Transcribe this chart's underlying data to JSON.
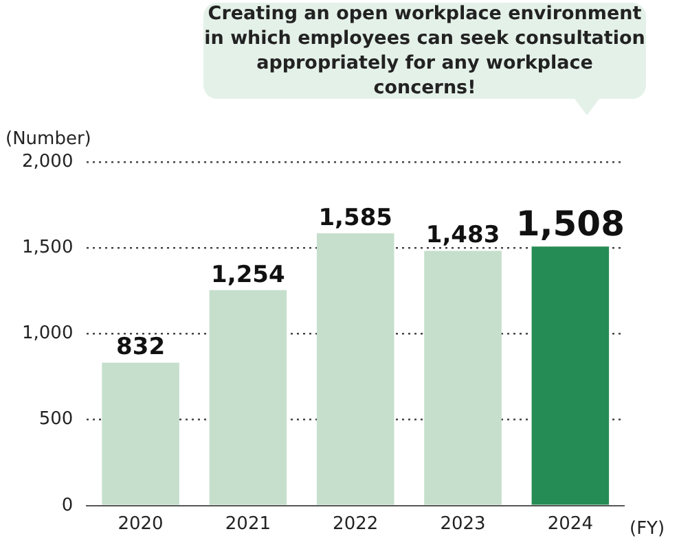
{
  "chart_data": {
    "type": "bar",
    "categories": [
      "2020",
      "2021",
      "2022",
      "2023",
      "2024"
    ],
    "values": [
      832,
      1254,
      1585,
      1483,
      1508
    ],
    "colors": [
      "#c5dfcc",
      "#c5dfcc",
      "#c5dfcc",
      "#c5dfcc",
      "#268c55"
    ],
    "value_labels": [
      "832",
      "1,254",
      "1,585",
      "1,483",
      "1,508"
    ],
    "ylabel": "(Number)",
    "xlabel": "(FY)",
    "annotations": [
      "Creating an open workplace environment in which employees can seek consultation appropriately for any workplace concerns!"
    ],
    "ylim": [
      0,
      2000
    ],
    "yticks": [
      {
        "value": 0,
        "label": "0"
      },
      {
        "value": 500,
        "label": "500"
      },
      {
        "value": 1000,
        "label": "1,000"
      },
      {
        "value": 1500,
        "label": "1,500"
      },
      {
        "value": 2000,
        "label": "2,000"
      }
    ],
    "grid": "y",
    "legend": false
  }
}
